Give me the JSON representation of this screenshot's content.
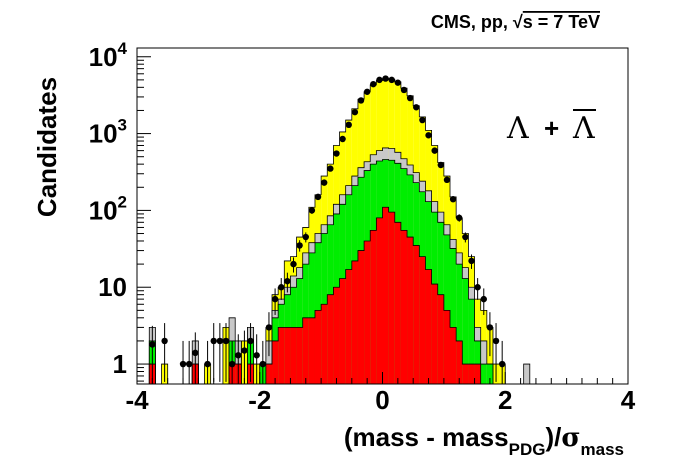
{
  "chart_data": {
    "type": "histogram",
    "title": "CMS, pp, √s = 7 TeV",
    "title_parts": {
      "experiment": "CMS, pp,",
      "sqrt": "√",
      "energy": "s = 7 TeV"
    },
    "xlabel": "(mass - mass_PDG)/σ_mass",
    "xlabel_parts": {
      "open": "(mass - mass",
      "pdg_sub": "PDG",
      "mid": ")/",
      "sigma": "σ",
      "mass_sub": "mass"
    },
    "ylabel": "Candidates",
    "annotation": {
      "lambda": "Λ",
      "plus": "+",
      "antilambda": "Λ"
    },
    "x_range": [
      -4,
      4
    ],
    "y_range": [
      0.55,
      13000
    ],
    "y_scale": "log",
    "x_ticks": [
      {
        "value": -4,
        "label": "-4"
      },
      {
        "value": -2,
        "label": "-2"
      },
      {
        "value": 0,
        "label": "0"
      },
      {
        "value": 2,
        "label": "2"
      },
      {
        "value": 4,
        "label": "4"
      }
    ],
    "y_ticks": [
      {
        "value": 1,
        "label": "1"
      },
      {
        "value": 10,
        "label": "10"
      },
      {
        "value": 100,
        "label": "10",
        "exp": "2"
      },
      {
        "value": 1000,
        "label": "10",
        "exp": "3"
      },
      {
        "value": 10000,
        "label": "10",
        "exp": "4"
      }
    ],
    "bin_width": 0.1,
    "colors": {
      "total": "#ffff00",
      "grey": "#c8c8c8",
      "green": "#00ee00",
      "red": "#ff0000",
      "data": "#000000"
    },
    "series": [
      {
        "name": "yellow",
        "bins": [
          [
            -3.6,
            1
          ],
          [
            -3.1,
            1
          ],
          [
            -2.9,
            1
          ],
          [
            -2.6,
            3
          ],
          [
            -2.4,
            1
          ],
          [
            -2.3,
            2
          ],
          [
            -2.2,
            3
          ],
          [
            -2.1,
            1
          ],
          [
            -2.0,
            1
          ],
          [
            -1.9,
            3
          ],
          [
            -1.8,
            8
          ],
          [
            -1.7,
            10
          ],
          [
            -1.6,
            22
          ],
          [
            -1.5,
            25
          ],
          [
            -1.4,
            45
          ],
          [
            -1.3,
            60
          ],
          [
            -1.2,
            110
          ],
          [
            -1.1,
            160
          ],
          [
            -1.0,
            280
          ],
          [
            -0.9,
            400
          ],
          [
            -0.8,
            700
          ],
          [
            -0.7,
            1050
          ],
          [
            -0.6,
            1500
          ],
          [
            -0.5,
            2100
          ],
          [
            -0.4,
            2800
          ],
          [
            -0.3,
            3500
          ],
          [
            -0.2,
            4300
          ],
          [
            -0.1,
            4900
          ],
          [
            0.0,
            5200
          ],
          [
            0.1,
            5100
          ],
          [
            0.2,
            4700
          ],
          [
            0.3,
            3900
          ],
          [
            0.4,
            3100
          ],
          [
            0.5,
            2300
          ],
          [
            0.6,
            1650
          ],
          [
            0.7,
            1100
          ],
          [
            0.8,
            700
          ],
          [
            0.9,
            420
          ],
          [
            1.0,
            280
          ],
          [
            1.1,
            150
          ],
          [
            1.2,
            80
          ],
          [
            1.3,
            50
          ],
          [
            1.4,
            25
          ],
          [
            1.5,
            7
          ],
          [
            1.6,
            5
          ],
          [
            1.7,
            3
          ],
          [
            1.8,
            1
          ],
          [
            1.9,
            1
          ]
        ]
      },
      {
        "name": "grey",
        "bins": [
          [
            -3.8,
            3
          ],
          [
            -3.1,
            2
          ],
          [
            -2.5,
            4
          ],
          [
            -2.4,
            2
          ],
          [
            -2.2,
            3
          ],
          [
            -2.0,
            1
          ],
          [
            -1.9,
            2
          ],
          [
            -1.8,
            5
          ],
          [
            -1.7,
            7
          ],
          [
            -1.6,
            10
          ],
          [
            -1.5,
            14
          ],
          [
            -1.4,
            18
          ],
          [
            -1.3,
            28
          ],
          [
            -1.2,
            38
          ],
          [
            -1.1,
            50
          ],
          [
            -1.0,
            65
          ],
          [
            -0.9,
            85
          ],
          [
            -0.8,
            120
          ],
          [
            -0.7,
            160
          ],
          [
            -0.6,
            210
          ],
          [
            -0.5,
            280
          ],
          [
            -0.4,
            360
          ],
          [
            -0.3,
            430
          ],
          [
            -0.2,
            530
          ],
          [
            -0.1,
            600
          ],
          [
            0.0,
            650
          ],
          [
            0.1,
            640
          ],
          [
            0.2,
            570
          ],
          [
            0.3,
            470
          ],
          [
            0.4,
            390
          ],
          [
            0.5,
            310
          ],
          [
            0.6,
            240
          ],
          [
            0.7,
            180
          ],
          [
            0.8,
            130
          ],
          [
            0.9,
            95
          ],
          [
            1.0,
            65
          ],
          [
            1.1,
            42
          ],
          [
            1.2,
            28
          ],
          [
            1.3,
            18
          ],
          [
            1.4,
            10
          ],
          [
            1.5,
            3
          ],
          [
            1.6,
            2
          ],
          [
            1.7,
            1
          ],
          [
            2.3,
            1
          ]
        ]
      },
      {
        "name": "green",
        "bins": [
          [
            -3.8,
            2
          ],
          [
            -3.1,
            1
          ],
          [
            -2.5,
            2
          ],
          [
            -2.4,
            1
          ],
          [
            -2.2,
            2
          ],
          [
            -2.0,
            1
          ],
          [
            -1.9,
            1
          ],
          [
            -1.8,
            4
          ],
          [
            -1.7,
            6
          ],
          [
            -1.6,
            8
          ],
          [
            -1.5,
            10
          ],
          [
            -1.4,
            13
          ],
          [
            -1.3,
            20
          ],
          [
            -1.2,
            28
          ],
          [
            -1.1,
            38
          ],
          [
            -1.0,
            50
          ],
          [
            -0.9,
            65
          ],
          [
            -0.8,
            90
          ],
          [
            -0.7,
            120
          ],
          [
            -0.6,
            160
          ],
          [
            -0.5,
            210
          ],
          [
            -0.4,
            270
          ],
          [
            -0.3,
            330
          ],
          [
            -0.2,
            400
          ],
          [
            -0.1,
            440
          ],
          [
            0.0,
            460
          ],
          [
            0.1,
            450
          ],
          [
            0.2,
            410
          ],
          [
            0.3,
            350
          ],
          [
            0.4,
            290
          ],
          [
            0.5,
            230
          ],
          [
            0.6,
            175
          ],
          [
            0.7,
            130
          ],
          [
            0.8,
            95
          ],
          [
            0.9,
            70
          ],
          [
            1.0,
            48
          ],
          [
            1.1,
            32
          ],
          [
            1.2,
            20
          ],
          [
            1.3,
            13
          ],
          [
            1.4,
            7
          ],
          [
            1.5,
            2
          ],
          [
            1.6,
            1
          ],
          [
            1.7,
            1
          ]
        ]
      },
      {
        "name": "red",
        "bins": [
          [
            -3.8,
            1
          ],
          [
            -3.1,
            1
          ],
          [
            -2.5,
            1
          ],
          [
            -2.4,
            1
          ],
          [
            -2.2,
            1
          ],
          [
            -1.9,
            1
          ],
          [
            -1.8,
            2
          ],
          [
            -1.7,
            3
          ],
          [
            -1.6,
            3
          ],
          [
            -1.5,
            3
          ],
          [
            -1.4,
            3
          ],
          [
            -1.3,
            4
          ],
          [
            -1.2,
            4
          ],
          [
            -1.1,
            5
          ],
          [
            -1.0,
            6
          ],
          [
            -0.9,
            8
          ],
          [
            -0.8,
            10
          ],
          [
            -0.7,
            13
          ],
          [
            -0.6,
            17
          ],
          [
            -0.5,
            22
          ],
          [
            -0.4,
            30
          ],
          [
            -0.3,
            40
          ],
          [
            -0.2,
            55
          ],
          [
            -0.1,
            80
          ],
          [
            0.0,
            110
          ],
          [
            0.1,
            95
          ],
          [
            0.2,
            70
          ],
          [
            0.3,
            55
          ],
          [
            0.4,
            45
          ],
          [
            0.5,
            35
          ],
          [
            0.6,
            25
          ],
          [
            0.7,
            17
          ],
          [
            0.8,
            11
          ],
          [
            0.9,
            8
          ],
          [
            1.0,
            5
          ],
          [
            1.1,
            3
          ],
          [
            1.2,
            2
          ],
          [
            1.3,
            1
          ],
          [
            1.4,
            1
          ],
          [
            1.5,
            1
          ]
        ]
      }
    ],
    "points": [
      [
        -3.75,
        1.8
      ],
      [
        -3.55,
        2
      ],
      [
        -3.25,
        1
      ],
      [
        -3.15,
        1
      ],
      [
        -3.05,
        1.4
      ],
      [
        -2.85,
        1
      ],
      [
        -2.75,
        2
      ],
      [
        -2.65,
        2
      ],
      [
        -2.55,
        2
      ],
      [
        -2.45,
        1
      ],
      [
        -2.35,
        1.3
      ],
      [
        -2.25,
        1.5
      ],
      [
        -2.15,
        2
      ],
      [
        -2.05,
        1.3
      ],
      [
        -1.95,
        1
      ],
      [
        -1.85,
        3
      ],
      [
        -1.75,
        7
      ],
      [
        -1.65,
        10
      ],
      [
        -1.55,
        12
      ],
      [
        -1.45,
        20
      ],
      [
        -1.35,
        35
      ],
      [
        -1.25,
        45
      ],
      [
        -1.15,
        100
      ],
      [
        -1.05,
        150
      ],
      [
        -0.95,
        230
      ],
      [
        -0.85,
        350
      ],
      [
        -0.75,
        550
      ],
      [
        -0.65,
        850
      ],
      [
        -0.55,
        1300
      ],
      [
        -0.45,
        1900
      ],
      [
        -0.35,
        2700
      ],
      [
        -0.25,
        3500
      ],
      [
        -0.15,
        4400
      ],
      [
        -0.05,
        5000
      ],
      [
        0.05,
        5200
      ],
      [
        0.15,
        5000
      ],
      [
        0.25,
        4600
      ],
      [
        0.35,
        3700
      ],
      [
        0.45,
        2900
      ],
      [
        0.55,
        2200
      ],
      [
        0.65,
        1500
      ],
      [
        0.75,
        950
      ],
      [
        0.85,
        600
      ],
      [
        0.95,
        390
      ],
      [
        1.05,
        250
      ],
      [
        1.15,
        140
      ],
      [
        1.25,
        80
      ],
      [
        1.35,
        45
      ],
      [
        1.45,
        22
      ],
      [
        1.55,
        10
      ],
      [
        1.65,
        7
      ],
      [
        1.75,
        3
      ],
      [
        1.85,
        2
      ],
      [
        1.95,
        1
      ]
    ]
  }
}
